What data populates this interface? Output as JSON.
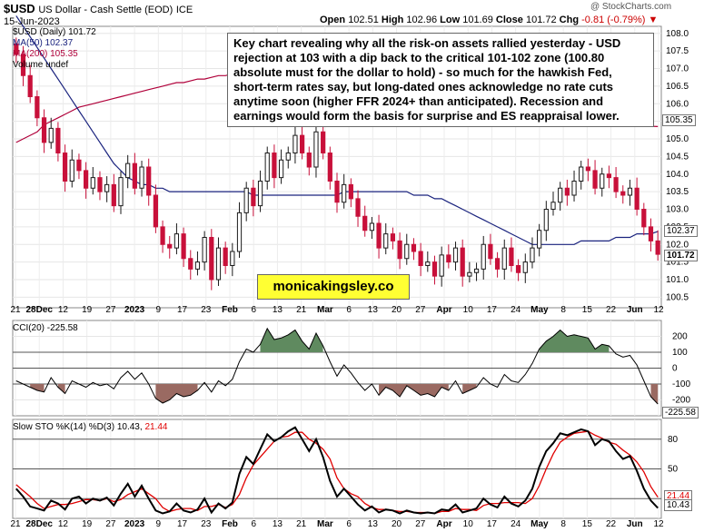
{
  "header": {
    "symbol": "$USD",
    "description": "US Dollar - Cash Settle (EOD)",
    "exchange": "ICE",
    "date": "15-Jun-2023",
    "open_label": "Open",
    "open": "102.51",
    "high_label": "High",
    "high": "102.96",
    "low_label": "Low",
    "low": "101.69",
    "close_label": "Close",
    "close": "101.72",
    "chg_label": "Chg",
    "chg": "-0.81 (-0.79%)",
    "watermark": "@ StockCharts.com"
  },
  "legend": {
    "main": "$USD (Daily) 101.72",
    "ma50": "MA(50) 102.37",
    "ma200": "MA(200) 105.35",
    "volume": "Volume undef"
  },
  "annotation": "Key chart revealing why all the risk-on assets rallied yesterday - USD rejection at 103 with a dip back to the critical 101-102 zone (100.80 absolute must for the dollar to hold) - so much for the hawkish Fed, short-term rates say, but long-dated ones acknowledge no rate cuts anytime soon (higher FFR 2024+ than anticipated). Recession and earnings would form the basis for surprise and ES reappraisal lower.",
  "site": "monicakingsley.co",
  "cci": {
    "label": "CCI(20) -225.58",
    "badge": "-225.58"
  },
  "sto": {
    "label_main": "Slow STO %K(14) %D(3) 10.43,",
    "label_d": "21.44",
    "badge_k": "10.43",
    "badge_d": "21.44"
  },
  "badges": {
    "ma200": "105.35",
    "ma50": "102.37",
    "close": "101.72"
  },
  "colors": {
    "up": "#1a1a1a",
    "down": "#c8103a",
    "ma50": "#1a237e",
    "ma200": "#b0003a",
    "cci_pos": "#5f8a5f",
    "cci_neg": "#9a6a62",
    "sto_d": "#e00000"
  },
  "chart_data": [
    {
      "type": "candlestick",
      "title": "$USD (Daily)",
      "x_tick_labels": [
        "21",
        "28Dec",
        "12",
        "19",
        "27",
        "2023",
        "9",
        "17",
        "23",
        "Feb",
        "6",
        "13",
        "21",
        "Mar",
        "6",
        "13",
        "20",
        "27",
        "Apr",
        "10",
        "17",
        "24",
        "May",
        "8",
        "15",
        "22",
        "Jun",
        "12"
      ],
      "y_tick_labels": [
        "100.5",
        "101.0",
        "101.5",
        "102.0",
        "102.5",
        "103.0",
        "103.5",
        "104.0",
        "104.5",
        "105.0",
        "105.5",
        "106.0",
        "106.5",
        "107.0",
        "107.5",
        "108.0"
      ],
      "ylim": [
        100.2,
        108.2
      ],
      "close": [
        107.4,
        106.8,
        106.2,
        105.6,
        104.9,
        105.3,
        104.6,
        103.8,
        104.4,
        104.1,
        103.6,
        103.9,
        103.5,
        103.7,
        103.1,
        103.9,
        104.3,
        103.6,
        104.2,
        103.4,
        102.5,
        102.0,
        101.9,
        102.3,
        101.6,
        101.3,
        101.5,
        102.2,
        101.0,
        101.9,
        101.4,
        101.8,
        102.9,
        103.6,
        103.1,
        103.8,
        104.6,
        103.9,
        104.4,
        104.6,
        105.1,
        104.6,
        104.2,
        105.2,
        104.6,
        103.8,
        103.2,
        103.7,
        103.3,
        102.8,
        102.4,
        102.6,
        101.9,
        102.3,
        102.1,
        101.6,
        102.0,
        101.8,
        101.4,
        101.5,
        101.1,
        101.7,
        101.5,
        101.9,
        101.1,
        101.2,
        101.3,
        102.0,
        101.6,
        101.3,
        101.9,
        101.4,
        101.2,
        101.5,
        101.9,
        102.4,
        103.0,
        103.2,
        103.6,
        103.4,
        103.8,
        104.2,
        104.1,
        103.6,
        104.0,
        103.9,
        103.5,
        103.4,
        103.6,
        103.0,
        102.5,
        102.1,
        101.72
      ],
      "ma50": [
        108.5,
        108.2,
        107.9,
        107.6,
        107.3,
        107.0,
        106.7,
        106.4,
        106.1,
        105.8,
        105.5,
        105.2,
        104.9,
        104.6,
        104.3,
        104.1,
        103.9,
        103.8,
        103.7,
        103.7,
        103.6,
        103.6,
        103.5,
        103.5,
        103.5,
        103.5,
        103.5,
        103.5,
        103.5,
        103.5,
        103.5,
        103.5,
        103.5,
        103.5,
        103.4,
        103.4,
        103.4,
        103.4,
        103.4,
        103.4,
        103.4,
        103.4,
        103.4,
        103.4,
        103.4,
        103.4,
        103.4,
        103.5,
        103.5,
        103.5,
        103.5,
        103.5,
        103.5,
        103.5,
        103.5,
        103.5,
        103.5,
        103.4,
        103.4,
        103.4,
        103.3,
        103.3,
        103.2,
        103.1,
        103.0,
        102.9,
        102.8,
        102.7,
        102.6,
        102.5,
        102.4,
        102.3,
        102.2,
        102.1,
        102.0,
        102.0,
        102.0,
        102.0,
        102.0,
        102.0,
        102.0,
        102.1,
        102.1,
        102.1,
        102.1,
        102.1,
        102.2,
        102.2,
        102.2,
        102.3,
        102.3,
        102.3,
        102.37
      ],
      "ma200": [
        104.9,
        105.0,
        105.1,
        105.2,
        105.4,
        105.5,
        105.6,
        105.7,
        105.8,
        105.9,
        105.95,
        106.0,
        106.05,
        106.1,
        106.15,
        106.2,
        106.25,
        106.3,
        106.35,
        106.4,
        106.45,
        106.5,
        106.55,
        106.6,
        106.6,
        106.65,
        106.7,
        106.7,
        106.75,
        106.8,
        106.8,
        106.85,
        106.9,
        106.9,
        106.9,
        106.95,
        106.95,
        107.0,
        107.0,
        107.0,
        107.0,
        107.0,
        107.0,
        107.0,
        107.0,
        107.0,
        107.0,
        107.0,
        107.0,
        107.0,
        106.95,
        106.95,
        106.9,
        106.9,
        106.85,
        106.8,
        106.8,
        106.75,
        106.7,
        106.65,
        106.6,
        106.55,
        106.5,
        106.45,
        106.4,
        106.35,
        106.3,
        106.25,
        106.2,
        106.15,
        106.1,
        106.05,
        106.0,
        105.95,
        105.9,
        105.85,
        105.8,
        105.75,
        105.7,
        105.65,
        105.6,
        105.55,
        105.5,
        105.48,
        105.46,
        105.44,
        105.42,
        105.4,
        105.39,
        105.38,
        105.37,
        105.36,
        105.35
      ]
    },
    {
      "type": "line",
      "title": "CCI(20)",
      "y_tick_labels": [
        "200",
        "100",
        "0",
        "-100",
        "-200"
      ],
      "ylim": [
        -300,
        300
      ],
      "reference_lines": [
        100,
        -100
      ],
      "values": [
        -80,
        -100,
        -120,
        -140,
        -150,
        -60,
        -120,
        -160,
        -80,
        -100,
        -120,
        -90,
        -110,
        -100,
        -130,
        -60,
        -20,
        -70,
        -30,
        -100,
        -190,
        -220,
        -200,
        -160,
        -180,
        -170,
        -140,
        -90,
        -150,
        -80,
        -110,
        -70,
        40,
        120,
        100,
        150,
        250,
        180,
        190,
        210,
        240,
        170,
        120,
        220,
        140,
        40,
        -50,
        20,
        -30,
        -90,
        -140,
        -100,
        -170,
        -120,
        -140,
        -180,
        -110,
        -140,
        -170,
        -160,
        -180,
        -120,
        -140,
        -80,
        -160,
        -140,
        -120,
        -60,
        -100,
        -120,
        -40,
        -80,
        -90,
        -40,
        30,
        120,
        170,
        200,
        240,
        200,
        210,
        200,
        190,
        120,
        150,
        140,
        90,
        70,
        80,
        20,
        -80,
        -180,
        -225.58
      ]
    },
    {
      "type": "line",
      "title": "Slow STO %K(14) %D(3)",
      "y_tick_labels": [
        "80",
        "50",
        "20"
      ],
      "ylim": [
        0,
        100
      ],
      "reference_lines": [
        80,
        50,
        20
      ],
      "series": [
        {
          "name": "%K",
          "values": [
            30,
            22,
            12,
            10,
            8,
            18,
            15,
            9,
            20,
            22,
            15,
            20,
            18,
            21,
            13,
            25,
            35,
            22,
            33,
            20,
            8,
            5,
            7,
            15,
            8,
            6,
            9,
            20,
            6,
            15,
            10,
            16,
            45,
            62,
            55,
            70,
            85,
            78,
            82,
            88,
            92,
            80,
            68,
            80,
            62,
            38,
            22,
            30,
            22,
            14,
            8,
            12,
            6,
            9,
            8,
            5,
            8,
            6,
            5,
            6,
            5,
            9,
            8,
            14,
            6,
            8,
            10,
            20,
            14,
            11,
            22,
            15,
            12,
            18,
            30,
            52,
            68,
            76,
            86,
            84,
            87,
            90,
            88,
            74,
            80,
            78,
            68,
            60,
            63,
            48,
            30,
            18,
            10.43
          ]
        },
        {
          "name": "%D",
          "values": [
            34,
            28,
            22,
            15,
            10,
            12,
            14,
            14,
            15,
            17,
            19,
            19,
            18,
            20,
            17,
            19,
            24,
            27,
            30,
            25,
            20,
            11,
            7,
            9,
            10,
            10,
            8,
            12,
            12,
            14,
            11,
            14,
            24,
            41,
            54,
            62,
            70,
            78,
            82,
            83,
            87,
            87,
            80,
            76,
            70,
            60,
            41,
            30,
            25,
            22,
            15,
            11,
            9,
            9,
            8,
            7,
            7,
            6,
            6,
            6,
            5,
            7,
            7,
            10,
            9,
            9,
            8,
            13,
            15,
            15,
            16,
            16,
            16,
            15,
            20,
            33,
            50,
            65,
            77,
            82,
            86,
            87,
            88,
            84,
            81,
            77,
            75,
            69,
            64,
            57,
            47,
            32,
            21.44
          ]
        }
      ]
    }
  ]
}
